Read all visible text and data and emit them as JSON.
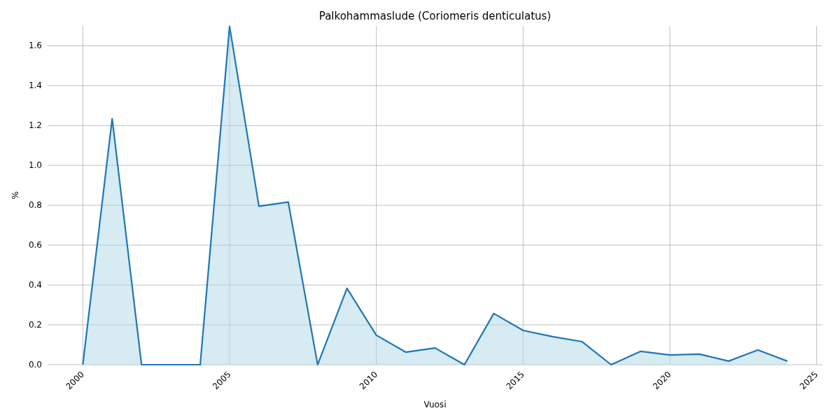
{
  "chart_data": {
    "type": "area",
    "title": "Palkohammaslude (Coriomeris denticulatus)",
    "xlabel": "Vuosi",
    "ylabel": "%",
    "x": [
      2000,
      2001,
      2002,
      2003,
      2004,
      2005,
      2006,
      2007,
      2008,
      2009,
      2010,
      2011,
      2012,
      2013,
      2014,
      2015,
      2016,
      2017,
      2018,
      2019,
      2020,
      2021,
      2022,
      2023,
      2024
    ],
    "series": [
      {
        "color": "#1f77b4",
        "values": [
          0,
          1.234,
          0,
          0,
          0,
          1.698,
          0.795,
          0.816,
          0,
          0.383,
          0.148,
          0.063,
          0.084,
          0,
          0.257,
          0.172,
          0.141,
          0.116,
          0,
          0.067,
          0.049,
          0.053,
          0.018,
          0.074,
          0.018
        ]
      }
    ],
    "xlim": [
      1998.8,
      2025.2
    ],
    "xticks": [
      2000,
      2005,
      2010,
      2015,
      2020,
      2025
    ],
    "ylim": [
      0,
      1.7
    ],
    "yticks": [
      {
        "value": 0,
        "label": "0.0"
      },
      {
        "value": 0.2,
        "label": "0.2"
      },
      {
        "value": 0.4,
        "label": "0.4"
      },
      {
        "value": 0.6,
        "label": "0.6"
      },
      {
        "value": 0.8,
        "label": "0.8"
      },
      {
        "value": 1.0,
        "label": "1.0"
      },
      {
        "value": 1.2,
        "label": "1.2"
      },
      {
        "value": 1.4,
        "label": "1.4"
      },
      {
        "value": 1.6,
        "label": "1.6"
      }
    ],
    "grid": true
  }
}
